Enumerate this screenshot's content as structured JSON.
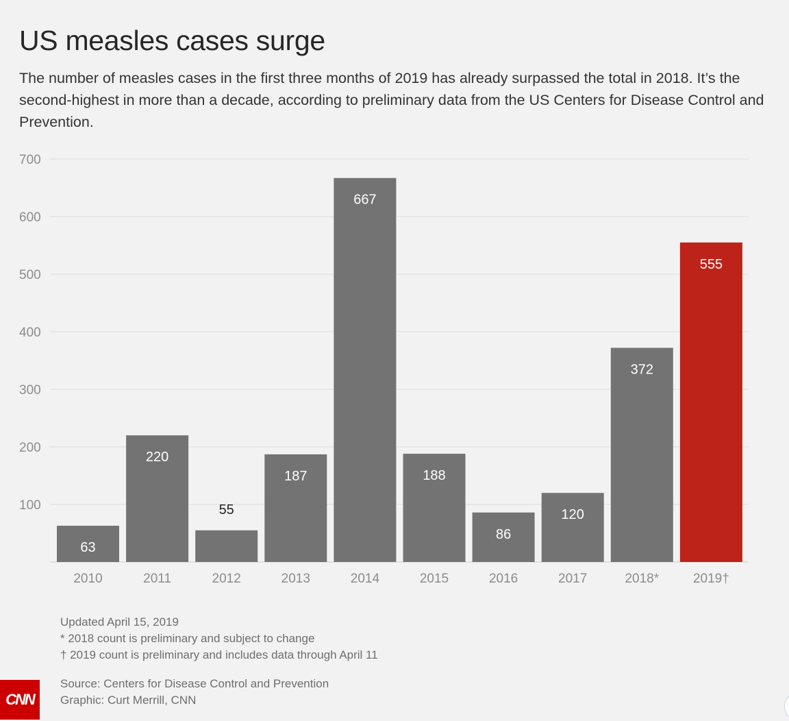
{
  "header": {
    "title": "US measles cases surge",
    "subtitle": "The number of measles cases in the first three months of 2019 has already surpassed the total in 2018. It’s the second-highest in more than a decade, according to preliminary data from the US Centers for Disease Control and Prevention."
  },
  "chart_data": {
    "type": "bar",
    "title": "US measles cases surge",
    "xlabel": "",
    "ylabel": "",
    "ylim": [
      0,
      700
    ],
    "yticks": [
      100,
      200,
      300,
      400,
      500,
      600,
      700
    ],
    "categories": [
      "2010",
      "2011",
      "2012",
      "2013",
      "2014",
      "2015",
      "2016",
      "2017",
      "2018*",
      "2019†"
    ],
    "values": [
      63,
      220,
      55,
      187,
      667,
      188,
      86,
      120,
      372,
      555
    ],
    "bar_colors": [
      "#737373",
      "#737373",
      "#737373",
      "#737373",
      "#737373",
      "#737373",
      "#737373",
      "#737373",
      "#737373",
      "#bd2319"
    ],
    "grid": true,
    "legend": "none"
  },
  "colors": {
    "bar": "#737373",
    "highlight": "#bd2319",
    "grid": "#dcdcdc",
    "axis_text": "#8c8c8c",
    "background": "#f2f2f2"
  },
  "notes": {
    "updated": "Updated April 15, 2019",
    "note_2018": "* 2018 count is preliminary and subject to change",
    "note_2019": "† 2019 count is preliminary and includes data through April 11"
  },
  "credits": {
    "source": "Source: Centers for Disease Control and Prevention",
    "graphic": "Graphic: Curt Merrill, CNN"
  },
  "logo": {
    "text": "CNN",
    "icon": "cnn-logo"
  }
}
